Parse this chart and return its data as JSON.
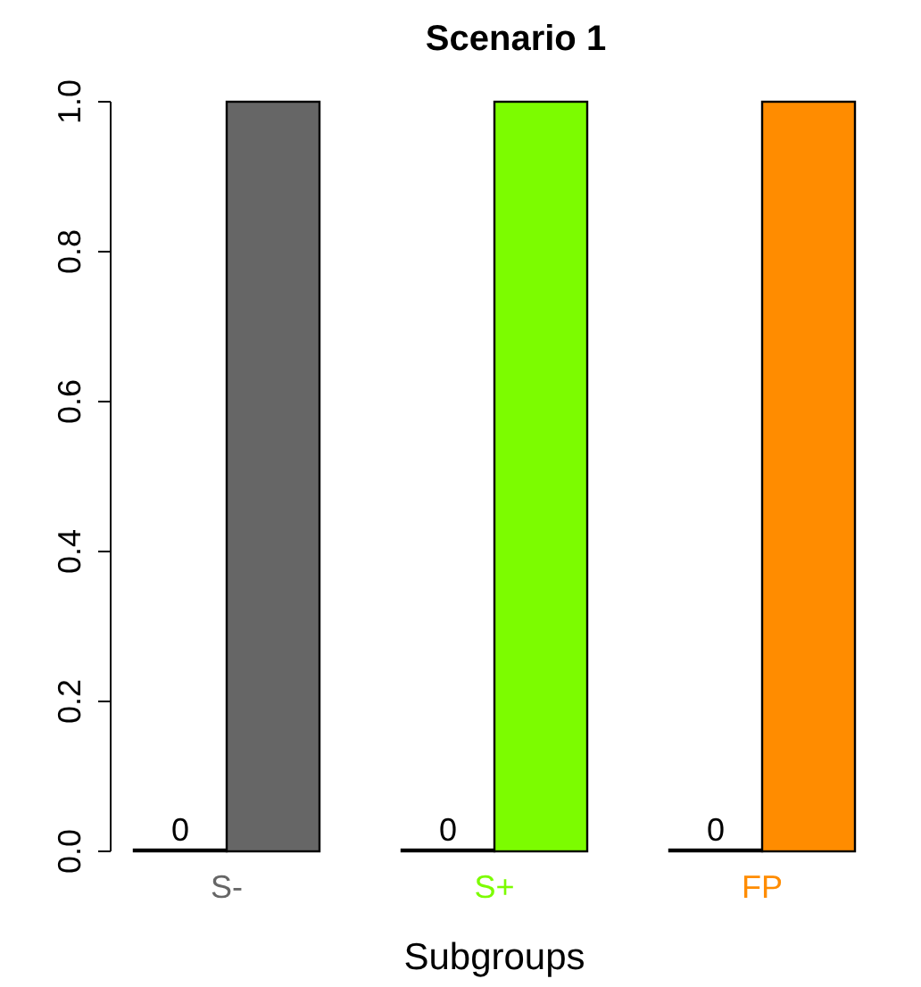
{
  "chart_data": {
    "type": "bar",
    "title": "Scenario 1",
    "xlabel": "Subgroups",
    "categories": [
      "S-",
      "S+",
      "FP"
    ],
    "ylim": [
      0,
      1
    ],
    "yticks": [
      {
        "value": 0,
        "label": "0.0"
      },
      {
        "value": 0.2,
        "label": "0.2"
      },
      {
        "value": 0.4,
        "label": "0.4"
      },
      {
        "value": 0.6,
        "label": "0.6"
      },
      {
        "value": 0.8,
        "label": "0.8"
      },
      {
        "value": 1,
        "label": "1.0"
      }
    ],
    "series": [
      {
        "values": [
          0,
          0,
          0
        ],
        "value_labels": [
          "0",
          "0",
          "0"
        ]
      },
      {
        "values": [
          1,
          1,
          1
        ],
        "colors": [
          "#666666",
          "#7cfc00",
          "#ff8c00"
        ]
      }
    ],
    "grid": false
  }
}
